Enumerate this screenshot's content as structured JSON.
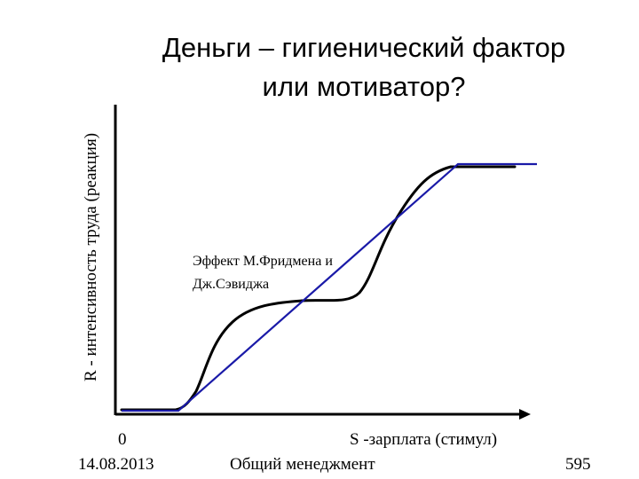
{
  "slide": {
    "title_line1": "Деньги – гигиенический фактор",
    "title_line2": "или мотиватор?",
    "ylabel": "R - интенсивность труда (реакция)",
    "xlabel": "S -зарплата (стимул)",
    "origin_label": "0"
  },
  "annotation": {
    "line1": "Эффект М.Фридмена и",
    "line2": "Дж.Сэвиджа"
  },
  "footer": {
    "date": "14.08.2013",
    "course": "Общий менеджмент",
    "page": "595"
  },
  "colors": {
    "axis": "#000000",
    "curve": "#000000",
    "line": "#1a1aa8"
  },
  "diagram": {
    "curves": [
      "s-shaped response curve (black)",
      "linear response line (blue)"
    ]
  }
}
